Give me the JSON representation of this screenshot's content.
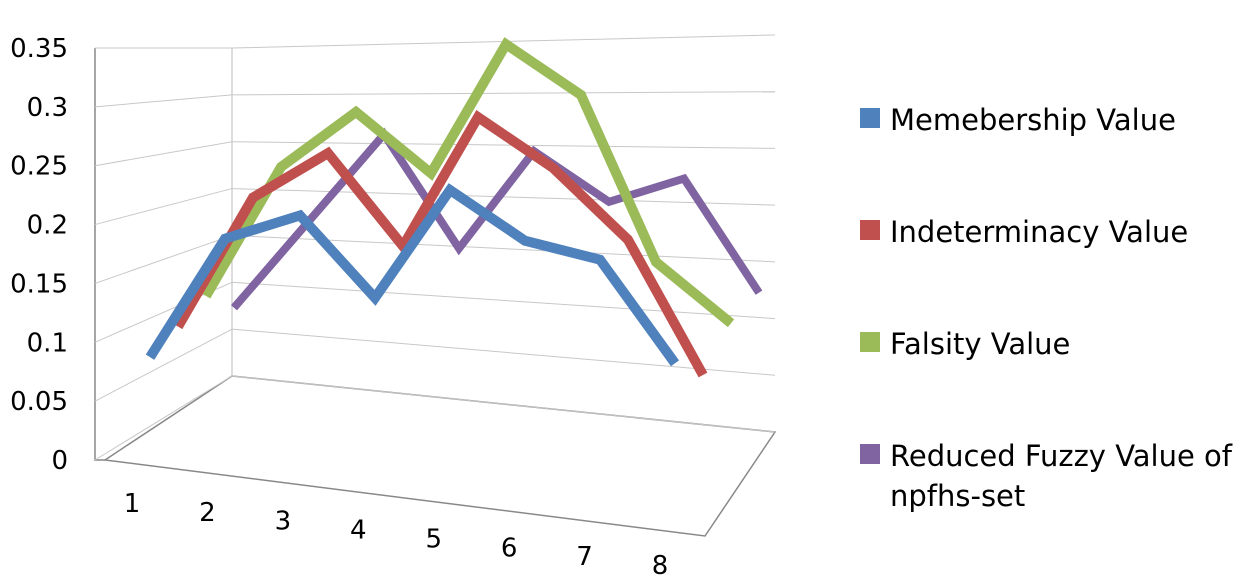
{
  "chart_data": {
    "type": "line",
    "style": "3d-line",
    "categories": [
      "1",
      "2",
      "3",
      "4",
      "5",
      "6",
      "7",
      "8"
    ],
    "y_ticks": [
      "0",
      "0.05",
      "0.1",
      "0.15",
      "0.2",
      "0.25",
      "0.3",
      "0.35"
    ],
    "ylim": [
      0,
      0.35
    ],
    "grid": true,
    "legend_position": "right",
    "series": [
      {
        "name": "Memebership Value",
        "color": "#4f81bd",
        "values": [
          0.05,
          0.16,
          0.18,
          0.1,
          0.2,
          0.15,
          0.13,
          0.03
        ]
      },
      {
        "name": "Indeterminacy Value",
        "color": "#c0504d",
        "values": [
          0.06,
          0.18,
          0.22,
          0.13,
          0.25,
          0.2,
          0.13,
          0.0
        ]
      },
      {
        "name": "Falsity Value",
        "color": "#9bbb59",
        "values": [
          0.07,
          0.19,
          0.24,
          0.18,
          0.3,
          0.25,
          0.09,
          0.03
        ]
      },
      {
        "name": "Reduced Fuzzy Value of npfhs-set",
        "color": "#8064a2",
        "values": [
          0.04,
          0.12,
          0.2,
          0.09,
          0.18,
          0.13,
          0.15,
          0.04
        ]
      }
    ]
  }
}
